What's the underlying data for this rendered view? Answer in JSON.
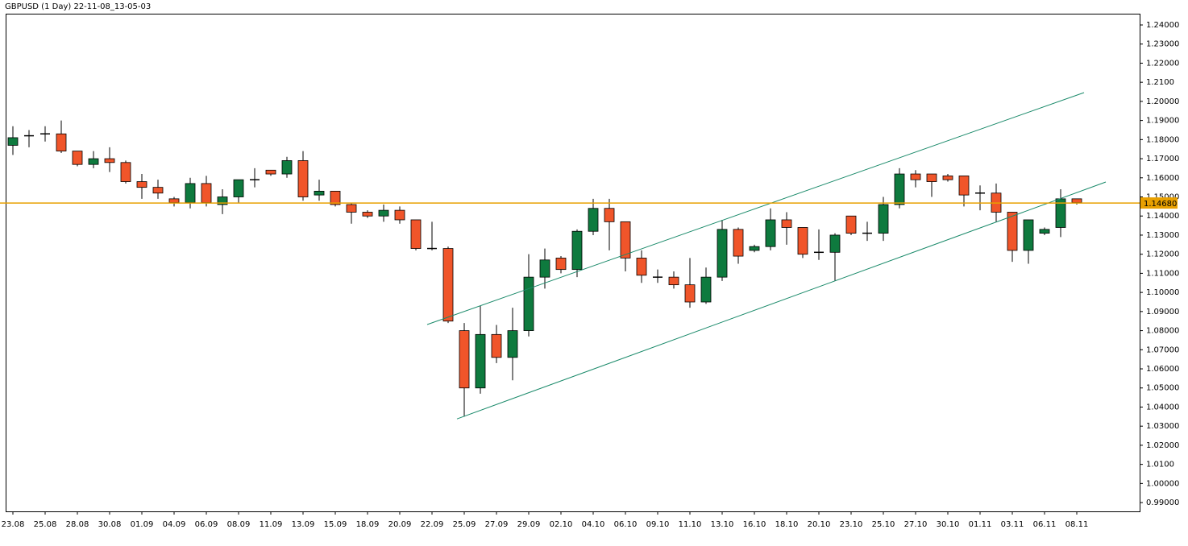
{
  "chart_data": {
    "type": "candlestick",
    "title": "GBPUSD (1 Day) 22-11-08_13-05-03",
    "categories": [
      "23.08",
      null,
      "25.08",
      null,
      "28.08",
      null,
      "30.08",
      null,
      "01.09",
      null,
      "04.09",
      null,
      "06.09",
      null,
      "08.09",
      null,
      "11.09",
      null,
      "13.09",
      null,
      "15.09",
      null,
      "18.09",
      null,
      "20.09",
      null,
      "22.09",
      null,
      "25.09",
      null,
      "27.09",
      null,
      "29.09",
      null,
      "02.10",
      null,
      "04.10",
      null,
      "06.10",
      null,
      "09.10",
      null,
      "11.10",
      null,
      "13.10",
      null,
      "16.10",
      null,
      "18.10",
      null,
      "20.10",
      null,
      "23.10",
      null,
      "25.10",
      null,
      "27.10",
      null,
      "30.10",
      null,
      "01.11",
      null,
      "03.11",
      null,
      "06.11",
      null,
      "08.11"
    ],
    "open": [
      1.177,
      1.182,
      1.183,
      1.183,
      1.174,
      1.167,
      1.17,
      1.168,
      1.158,
      1.155,
      1.149,
      1.147,
      1.157,
      1.146,
      1.15,
      1.159,
      1.164,
      1.162,
      1.169,
      1.151,
      1.153,
      1.146,
      1.142,
      1.14,
      1.143,
      1.138,
      1.123,
      1.123,
      1.08,
      1.05,
      1.078,
      1.066,
      1.08,
      1.108,
      1.118,
      1.112,
      1.132,
      1.144,
      1.137,
      1.118,
      1.108,
      1.108,
      1.104,
      1.095,
      1.108,
      1.133,
      1.122,
      1.124,
      1.138,
      1.134,
      1.121,
      1.121,
      1.14,
      1.131,
      1.131,
      1.146,
      1.162,
      1.162,
      1.161,
      1.161,
      1.152,
      1.152,
      1.142,
      1.122,
      1.131,
      1.134,
      1.149
    ],
    "high": [
      1.187,
      1.185,
      1.187,
      1.19,
      1.174,
      1.174,
      1.176,
      1.169,
      1.162,
      1.159,
      1.15,
      1.16,
      1.161,
      1.154,
      1.159,
      1.165,
      1.164,
      1.171,
      1.174,
      1.159,
      1.153,
      1.147,
      1.143,
      1.146,
      1.145,
      1.138,
      1.137,
      1.124,
      1.084,
      1.093,
      1.083,
      1.092,
      1.12,
      1.123,
      1.119,
      1.133,
      1.149,
      1.149,
      1.137,
      1.122,
      1.112,
      1.111,
      1.118,
      1.113,
      1.138,
      1.134,
      1.125,
      1.144,
      1.142,
      1.134,
      1.133,
      1.131,
      1.14,
      1.137,
      1.15,
      1.165,
      1.164,
      1.162,
      1.162,
      1.161,
      1.156,
      1.157,
      1.142,
      1.138,
      1.134,
      1.154,
      1.149
    ],
    "low": [
      1.172,
      1.176,
      1.179,
      1.173,
      1.166,
      1.165,
      1.163,
      1.157,
      1.149,
      1.149,
      1.145,
      1.144,
      1.145,
      1.141,
      1.147,
      1.155,
      1.161,
      1.16,
      1.148,
      1.148,
      1.145,
      1.136,
      1.139,
      1.137,
      1.136,
      1.122,
      1.122,
      1.084,
      1.035,
      1.047,
      1.063,
      1.054,
      1.077,
      1.102,
      1.11,
      1.108,
      1.13,
      1.122,
      1.111,
      1.105,
      1.105,
      1.102,
      1.092,
      1.094,
      1.106,
      1.115,
      1.121,
      1.122,
      1.125,
      1.118,
      1.117,
      1.106,
      1.13,
      1.127,
      1.127,
      1.144,
      1.155,
      1.15,
      1.158,
      1.145,
      1.143,
      1.137,
      1.116,
      1.115,
      1.13,
      1.129,
      1.146
    ],
    "close": [
      1.181,
      1.182,
      1.183,
      1.174,
      1.167,
      1.17,
      1.168,
      1.158,
      1.155,
      1.152,
      1.147,
      1.157,
      1.147,
      1.15,
      1.159,
      1.159,
      1.162,
      1.169,
      1.15,
      1.153,
      1.146,
      1.142,
      1.14,
      1.143,
      1.138,
      1.123,
      1.123,
      1.085,
      1.05,
      1.078,
      1.066,
      1.08,
      1.108,
      1.117,
      1.112,
      1.132,
      1.144,
      1.137,
      1.118,
      1.109,
      1.108,
      1.104,
      1.095,
      1.108,
      1.133,
      1.119,
      1.124,
      1.138,
      1.134,
      1.12,
      1.121,
      1.13,
      1.131,
      1.131,
      1.146,
      1.162,
      1.159,
      1.158,
      1.159,
      1.151,
      1.152,
      1.142,
      1.122,
      1.138,
      1.133,
      1.149,
      1.147
    ],
    "up_color": "#0e7a3e",
    "down_color": "#f0552a",
    "ylim": [
      0.9854,
      1.2459
    ],
    "yticks": [
      {
        "value": 0.99,
        "label": "0.99000"
      },
      {
        "value": 1.0,
        "label": "1.00000"
      },
      {
        "value": 1.01,
        "label": "1.0100"
      },
      {
        "value": 1.02,
        "label": "1.02000"
      },
      {
        "value": 1.03,
        "label": "1.03000"
      },
      {
        "value": 1.04,
        "label": "1.04000"
      },
      {
        "value": 1.05,
        "label": "1.05000"
      },
      {
        "value": 1.06,
        "label": "1.06000"
      },
      {
        "value": 1.07,
        "label": "1.07000"
      },
      {
        "value": 1.08,
        "label": "1.08000"
      },
      {
        "value": 1.09,
        "label": "1.09000"
      },
      {
        "value": 1.1,
        "label": "1.10000"
      },
      {
        "value": 1.11,
        "label": "1.11000"
      },
      {
        "value": 1.12,
        "label": "1.12000"
      },
      {
        "value": 1.13,
        "label": "1.13000"
      },
      {
        "value": 1.14,
        "label": "1.14000"
      },
      {
        "value": 1.15,
        "label": "1.15000"
      },
      {
        "value": 1.16,
        "label": "1.16000"
      },
      {
        "value": 1.17,
        "label": "1.17000"
      },
      {
        "value": 1.18,
        "label": "1.18000"
      },
      {
        "value": 1.19,
        "label": "1.19000"
      },
      {
        "value": 1.2,
        "label": "1.20000"
      },
      {
        "value": 1.21,
        "label": "1.2100"
      },
      {
        "value": 1.22,
        "label": "1.22000"
      },
      {
        "value": 1.23,
        "label": "1.23000"
      },
      {
        "value": 1.24,
        "label": "1.24000"
      }
    ],
    "current_price": {
      "value": 1.1468,
      "label": "1.14680"
    },
    "current_price_color": "#e8a000",
    "trendlines": [
      {
        "color": "#1a8a6a",
        "x": [
          25.7,
          66.45
        ],
        "y": [
          1.0832,
          1.2046
        ]
      },
      {
        "color": "#1a8a6a",
        "x": [
          27.55,
          67.8
        ],
        "y": [
          1.0338,
          1.1578
        ]
      }
    ]
  }
}
